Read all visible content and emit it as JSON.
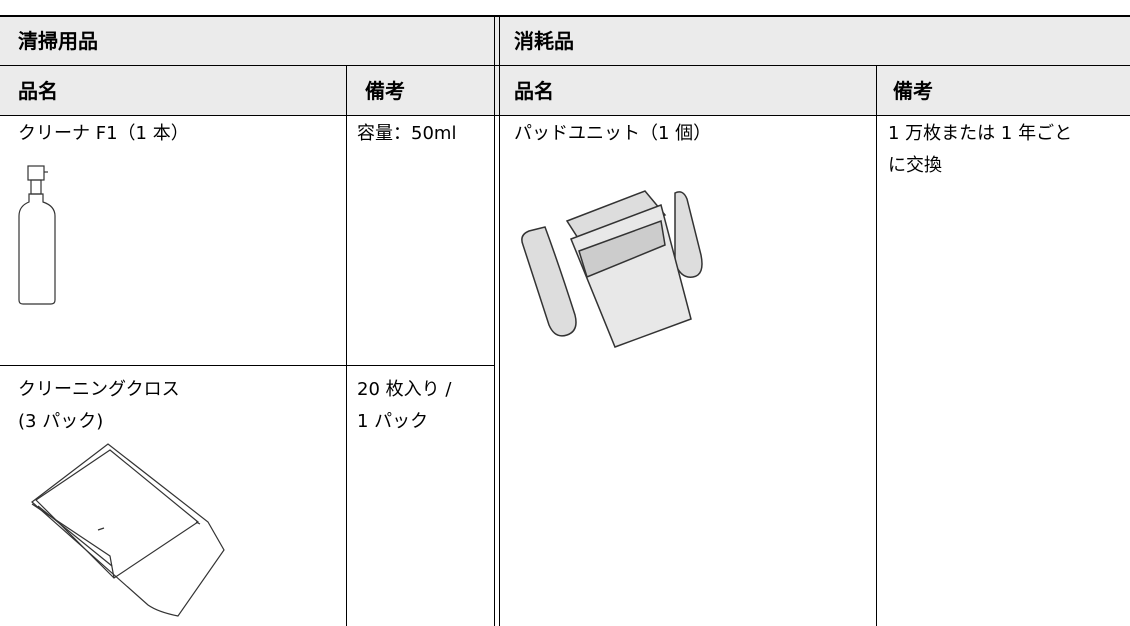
{
  "sections": [
    {
      "title": "清掃用品",
      "headers": [
        "品名",
        "備考"
      ],
      "rows": [
        {
          "name": [
            "クリーナ F1（1 本）"
          ],
          "note": [
            "容量：50ml"
          ]
        },
        {
          "name": [
            "クリーニングクロス",
            "(3 パック)"
          ],
          "note": [
            "20 枚入り /",
            "1 パック"
          ]
        }
      ]
    },
    {
      "title": "消耗品",
      "headers": [
        "品名",
        "備考"
      ],
      "rows": [
        {
          "name": [
            "パッドユニット（1 個）"
          ],
          "note": [
            "1 万枚または 1 年ごと",
            "に交換"
          ]
        }
      ]
    }
  ]
}
